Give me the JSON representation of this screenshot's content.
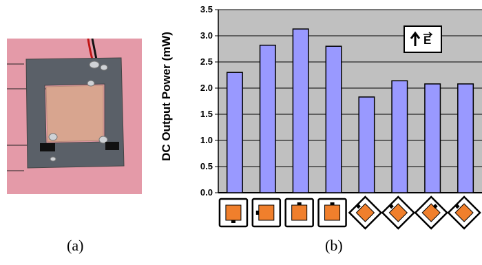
{
  "captions": {
    "a": "(a)",
    "b": "(b)"
  },
  "photo": {
    "background_color": "#e49aa8",
    "board_color": "#5a6068",
    "patch_color": "#d8a58f"
  },
  "chart_data": {
    "type": "bar",
    "ylabel": "DC Output Power (mW)",
    "ylim": [
      0,
      3.5
    ],
    "yticks": [
      "0.0",
      "0.5",
      "1.0",
      "1.5",
      "2.0",
      "2.5",
      "3.0",
      "3.5"
    ],
    "grid": true,
    "values": [
      2.3,
      2.82,
      3.13,
      2.8,
      1.83,
      2.14,
      2.08,
      2.08
    ],
    "categories_icons": [
      "square-bottom-port",
      "square-left-port",
      "square-top-port",
      "square-top-port",
      "diamond-left-port",
      "diamond-left-port",
      "diamond-top-port",
      "diamond-left-port"
    ],
    "legend_symbol": "E",
    "legend_icon": "up-arrow-icon",
    "colors": {
      "bar": "#9999ff",
      "bar_edge": "#000000",
      "plot_bg": "#c0c0c0",
      "icon_fill": "#f07f2c"
    }
  }
}
